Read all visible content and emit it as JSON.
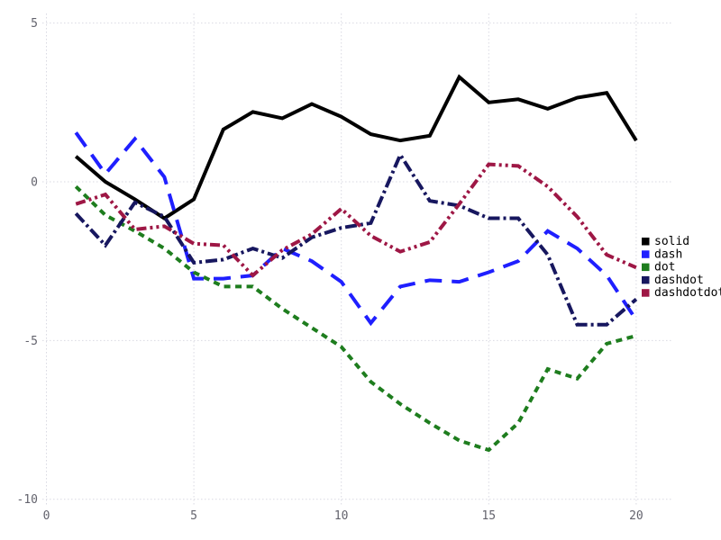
{
  "figure": {
    "background": "#ffffff",
    "tick_color": "#63636d",
    "grid_color": "#d9d9e2",
    "legend_text_color": "#000000"
  },
  "axes": {
    "grid": true,
    "xlim": [
      0,
      21
    ],
    "ylim": [
      -10.5,
      5.5
    ],
    "xticks": [
      "0",
      "5",
      "10",
      "15",
      "20"
    ],
    "xtick_values": [
      0,
      5,
      10,
      15,
      20
    ],
    "yticks": [
      "5",
      "0",
      "-5",
      "-10"
    ],
    "ytick_values": [
      5,
      0,
      -5,
      -10
    ]
  },
  "chart_data": {
    "type": "line",
    "title": "",
    "xlabel": "",
    "ylabel": "",
    "legend_position": "right",
    "x": [
      1,
      2,
      3,
      4,
      5,
      6,
      7,
      8,
      9,
      10,
      11,
      12,
      13,
      14,
      15,
      16,
      17,
      18,
      19,
      20
    ],
    "series": [
      {
        "name": "solid",
        "color": "#000000",
        "line_style": "solid",
        "values": [
          0.8,
          0.0,
          -0.55,
          -1.15,
          -0.55,
          1.65,
          2.2,
          2.0,
          2.45,
          2.05,
          1.5,
          1.3,
          1.45,
          3.3,
          2.5,
          2.6,
          2.3,
          2.65,
          2.8,
          1.3
        ]
      },
      {
        "name": "dash",
        "color": "#1f1fff",
        "line_style": "dash",
        "values": [
          1.55,
          0.25,
          1.35,
          0.15,
          -3.05,
          -3.05,
          -2.95,
          -2.1,
          -2.5,
          -3.15,
          -4.45,
          -3.3,
          -3.1,
          -3.15,
          -2.85,
          -2.5,
          -1.55,
          -2.1,
          -2.95,
          -4.35
        ]
      },
      {
        "name": "dot",
        "color": "#1e7d1e",
        "line_style": "dot",
        "values": [
          -0.15,
          -1.05,
          -1.55,
          -2.1,
          -2.85,
          -3.3,
          -3.3,
          -4.0,
          -4.6,
          -5.2,
          -6.3,
          -7.0,
          -7.6,
          -8.15,
          -8.45,
          -7.6,
          -5.9,
          -6.2,
          -5.1,
          -4.85
        ]
      },
      {
        "name": "dashdot",
        "color": "#17175f",
        "line_style": "dashdot",
        "values": [
          -1.0,
          -2.0,
          -0.65,
          -1.1,
          -2.55,
          -2.45,
          -2.1,
          -2.4,
          -1.75,
          -1.45,
          -1.3,
          0.85,
          -0.6,
          -0.75,
          -1.15,
          -1.15,
          -2.3,
          -4.5,
          -4.5,
          -3.7
        ]
      },
      {
        "name": "dashdotdot",
        "color": "#9e1745",
        "line_style": "dashdotdot",
        "values": [
          -0.7,
          -0.4,
          -1.5,
          -1.4,
          -1.95,
          -2.0,
          -2.95,
          -2.15,
          -1.65,
          -0.85,
          -1.7,
          -2.2,
          -1.9,
          -0.7,
          0.55,
          0.5,
          -0.15,
          -1.1,
          -2.3,
          -2.7
        ]
      }
    ]
  }
}
